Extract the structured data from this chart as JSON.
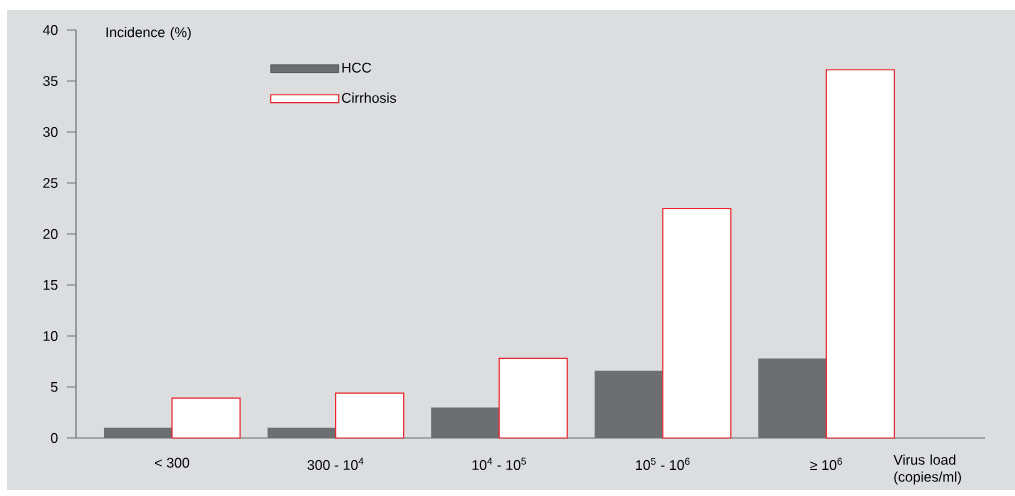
{
  "chart_data": {
    "type": "bar",
    "xlabel": "Virus load (copies/ml)",
    "ylabel": "Incidence (%)",
    "categories": [
      "< 300",
      "300 - 10$^{4}$",
      "10$^{4}$ - 10$^{5}$",
      "10$^{5}$ - 10$^{6}$",
      "≥ 10$^{6}$"
    ],
    "series": [
      {
        "name": "HCC",
        "color": "#6d6e71",
        "values": [
          1.0,
          1.0,
          3.0,
          6.6,
          7.8
        ]
      },
      {
        "name": "Cirrhosis",
        "color": "#e8262d",
        "values": [
          3.9,
          4.4,
          7.8,
          22.5,
          36.1
        ]
      }
    ],
    "ylim": [
      0,
      40
    ],
    "yticks": [
      0,
      5,
      10,
      15,
      20,
      25,
      30,
      35,
      40
    ],
    "grid": false,
    "legend": "top left"
  }
}
